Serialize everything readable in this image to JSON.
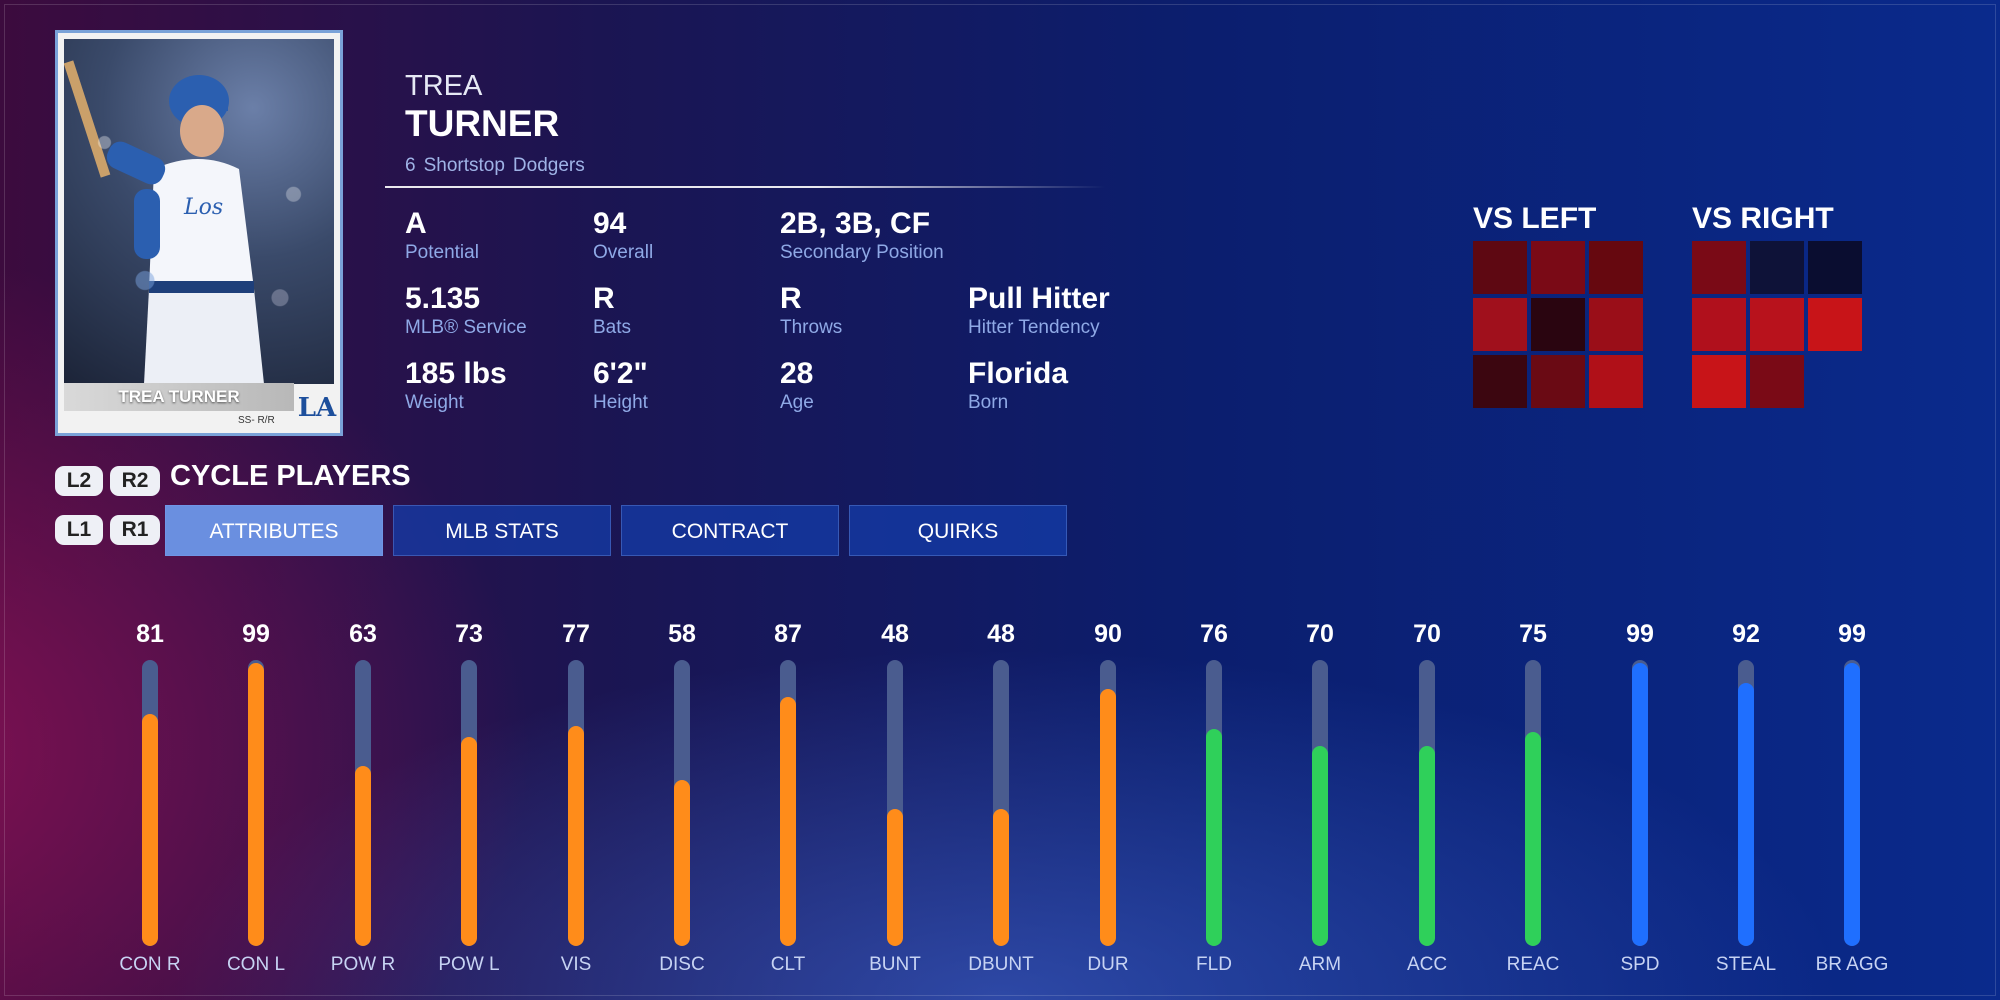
{
  "card": {
    "nameplate": "TREA TURNER",
    "subtitle": "SS- R/R",
    "logo": "LA"
  },
  "player": {
    "first_name": "TREA",
    "last_name": "TURNER",
    "number": "6",
    "position": "Shortstop",
    "team": "Dodgers"
  },
  "stats": [
    {
      "value": "A",
      "label": "Potential"
    },
    {
      "value": "94",
      "label": "Overall"
    },
    {
      "value": "2B, 3B, CF",
      "label": "Secondary Position"
    },
    {
      "value": "5.135",
      "label": "MLB® Service"
    },
    {
      "value": "R",
      "label": "Bats"
    },
    {
      "value": "R",
      "label": "Throws"
    },
    {
      "value": "Pull Hitter",
      "label": "Hitter Tendency"
    },
    {
      "value": "185 lbs",
      "label": "Weight"
    },
    {
      "value": "6'2\"",
      "label": "Height"
    },
    {
      "value": "28",
      "label": "Age"
    },
    {
      "value": "Florida",
      "label": "Born"
    }
  ],
  "splits": {
    "vs_left": {
      "title": "VS LEFT",
      "cells": [
        "#5e0812",
        "#7a0a16",
        "#66080f",
        "#a0101c",
        "#2a0510",
        "#9a0e18",
        "#3c0610",
        "#6a0a14",
        "#b01018"
      ]
    },
    "vs_right": {
      "title": "VS RIGHT",
      "cells": [
        "#7a0a16",
        "#0e1238",
        "#0a0d30",
        "#b0101c",
        "#b8121c",
        "#c81418",
        "#c81418",
        "#7a0a16",
        ""
      ]
    }
  },
  "controls": {
    "l2": "L2",
    "r2": "R2",
    "l1": "L1",
    "r1": "R1",
    "cycle_label": "CYCLE PLAYERS"
  },
  "tabs": [
    {
      "label": "ATTRIBUTES",
      "active": true
    },
    {
      "label": "MLB STATS",
      "active": false
    },
    {
      "label": "CONTRACT",
      "active": false
    },
    {
      "label": "QUIRKS",
      "active": false
    }
  ],
  "colors": {
    "hitting": "#ff8c1a",
    "fielding": "#2fd05a",
    "running": "#1f6fff"
  },
  "attributes": [
    {
      "label": "CON R",
      "value": 81,
      "group": "hitting"
    },
    {
      "label": "CON L",
      "value": 99,
      "group": "hitting"
    },
    {
      "label": "POW R",
      "value": 63,
      "group": "hitting"
    },
    {
      "label": "POW L",
      "value": 73,
      "group": "hitting"
    },
    {
      "label": "VIS",
      "value": 77,
      "group": "hitting"
    },
    {
      "label": "DISC",
      "value": 58,
      "group": "hitting"
    },
    {
      "label": "CLT",
      "value": 87,
      "group": "hitting"
    },
    {
      "label": "BUNT",
      "value": 48,
      "group": "hitting"
    },
    {
      "label": "DBUNT",
      "value": 48,
      "group": "hitting"
    },
    {
      "label": "DUR",
      "value": 90,
      "group": "hitting"
    },
    {
      "label": "FLD",
      "value": 76,
      "group": "fielding"
    },
    {
      "label": "ARM",
      "value": 70,
      "group": "fielding"
    },
    {
      "label": "ACC",
      "value": 70,
      "group": "fielding"
    },
    {
      "label": "REAC",
      "value": 75,
      "group": "fielding"
    },
    {
      "label": "SPD",
      "value": 99,
      "group": "running"
    },
    {
      "label": "STEAL",
      "value": 92,
      "group": "running"
    },
    {
      "label": "BR AGG",
      "value": 99,
      "group": "running"
    }
  ]
}
